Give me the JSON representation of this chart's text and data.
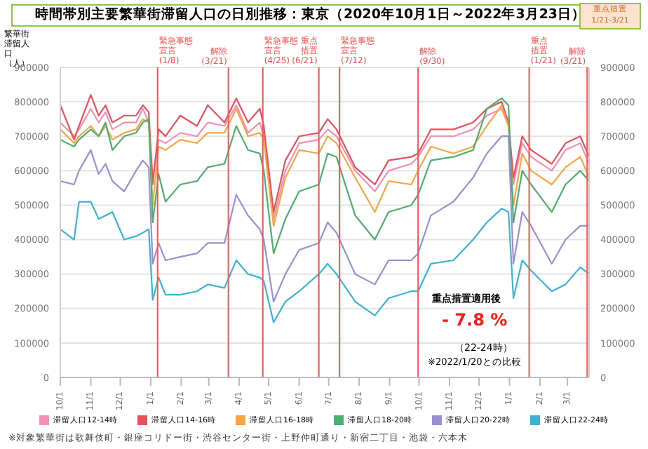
{
  "chart_data": {
    "type": "line",
    "title": "時間帯別主要繁華街滞留人口の日別推移：東京（2020年10月1日～2022年3月23日）",
    "ylabel": "繁華街滞留人口（人）",
    "x": [
      "2020-10-01",
      "2020-10-15",
      "2020-10-20",
      "2020-11-01",
      "2020-11-09",
      "2020-11-16",
      "2020-11-23",
      "2020-12-05",
      "2020-12-17",
      "2020-12-24",
      "2020-12-30",
      "2021-01-03",
      "2021-01-09",
      "2021-01-16",
      "2021-01-31",
      "2021-02-17",
      "2021-02-28",
      "2021-03-17",
      "2021-03-29",
      "2021-04-10",
      "2021-04-22",
      "2021-04-26",
      "2021-05-06",
      "2021-05-18",
      "2021-06-01",
      "2021-06-21",
      "2021-06-30",
      "2021-07-09",
      "2021-07-28",
      "2021-08-17",
      "2021-08-31",
      "2021-09-23",
      "2021-09-30",
      "2021-10-13",
      "2021-11-05",
      "2021-11-25",
      "2021-12-09",
      "2021-12-24",
      "2021-12-31",
      "2022-01-05",
      "2022-01-14",
      "2022-01-23",
      "2022-02-13",
      "2022-02-27",
      "2022-03-14",
      "2022-03-23"
    ],
    "series": [
      {
        "name": "滞留人口12-14時",
        "color": "#f490b4",
        "values": [
          740000,
          700000,
          720000,
          780000,
          740000,
          770000,
          720000,
          740000,
          740000,
          780000,
          740000,
          580000,
          690000,
          680000,
          710000,
          700000,
          740000,
          730000,
          790000,
          710000,
          740000,
          700000,
          460000,
          600000,
          680000,
          690000,
          720000,
          700000,
          600000,
          540000,
          600000,
          620000,
          640000,
          700000,
          700000,
          720000,
          760000,
          780000,
          730000,
          560000,
          680000,
          640000,
          600000,
          660000,
          680000,
          620000
        ]
      },
      {
        "name": "滞留人口14-16時",
        "color": "#e8505b",
        "values": [
          790000,
          690000,
          730000,
          820000,
          760000,
          790000,
          740000,
          760000,
          760000,
          790000,
          770000,
          560000,
          720000,
          700000,
          760000,
          730000,
          790000,
          740000,
          810000,
          740000,
          780000,
          730000,
          480000,
          630000,
          700000,
          710000,
          750000,
          720000,
          610000,
          560000,
          630000,
          640000,
          650000,
          720000,
          720000,
          740000,
          780000,
          800000,
          740000,
          580000,
          700000,
          660000,
          620000,
          680000,
          700000,
          640000
        ]
      },
      {
        "name": "滞留人口16-18時",
        "color": "#f7a541",
        "values": [
          720000,
          680000,
          700000,
          730000,
          700000,
          730000,
          690000,
          710000,
          720000,
          750000,
          740000,
          500000,
          670000,
          660000,
          690000,
          680000,
          710000,
          710000,
          780000,
          700000,
          710000,
          690000,
          440000,
          580000,
          660000,
          650000,
          700000,
          680000,
          580000,
          480000,
          570000,
          560000,
          600000,
          670000,
          650000,
          670000,
          730000,
          790000,
          730000,
          500000,
          650000,
          600000,
          560000,
          610000,
          640000,
          580000
        ]
      },
      {
        "name": "滞留人口18-20時",
        "color": "#4caf6e",
        "values": [
          690000,
          670000,
          690000,
          720000,
          700000,
          740000,
          660000,
          700000,
          710000,
          740000,
          750000,
          450000,
          590000,
          510000,
          560000,
          570000,
          610000,
          620000,
          730000,
          660000,
          650000,
          600000,
          360000,
          460000,
          540000,
          560000,
          650000,
          640000,
          470000,
          400000,
          480000,
          500000,
          530000,
          630000,
          640000,
          660000,
          780000,
          810000,
          790000,
          450000,
          600000,
          560000,
          480000,
          560000,
          600000,
          570000
        ]
      },
      {
        "name": "滞留人口20-22時",
        "color": "#9b8fd4",
        "values": [
          570000,
          560000,
          600000,
          660000,
          590000,
          620000,
          570000,
          540000,
          600000,
          630000,
          610000,
          330000,
          390000,
          340000,
          350000,
          360000,
          390000,
          390000,
          530000,
          470000,
          430000,
          400000,
          220000,
          300000,
          370000,
          390000,
          450000,
          420000,
          300000,
          270000,
          340000,
          340000,
          360000,
          470000,
          510000,
          580000,
          650000,
          700000,
          700000,
          330000,
          480000,
          440000,
          330000,
          400000,
          440000,
          440000
        ]
      },
      {
        "name": "滞留人口22-24時",
        "color": "#3bb3d3",
        "values": [
          430000,
          400000,
          510000,
          510000,
          460000,
          470000,
          480000,
          400000,
          410000,
          420000,
          430000,
          225000,
          290000,
          240000,
          240000,
          250000,
          270000,
          260000,
          340000,
          300000,
          290000,
          280000,
          160000,
          220000,
          250000,
          300000,
          330000,
          300000,
          220000,
          180000,
          230000,
          250000,
          250000,
          330000,
          340000,
          400000,
          450000,
          490000,
          480000,
          230000,
          340000,
          310000,
          250000,
          270000,
          320000,
          300000
        ]
      }
    ],
    "xlim": [
      "2020-10-01",
      "2022-03-23"
    ],
    "xticks": [
      {
        "value": "2020-10-01",
        "label": "10/1"
      },
      {
        "value": "2020-11-01",
        "label": "11/1"
      },
      {
        "value": "2020-12-01",
        "label": "12/1"
      },
      {
        "value": "2021-01-01",
        "label": "1/1"
      },
      {
        "value": "2021-02-01",
        "label": "2/1"
      },
      {
        "value": "2021-03-01",
        "label": "3/1"
      },
      {
        "value": "2021-04-01",
        "label": "4/1"
      },
      {
        "value": "2021-05-01",
        "label": "5/1"
      },
      {
        "value": "2021-06-01",
        "label": "6/1"
      },
      {
        "value": "2021-07-01",
        "label": "7/1"
      },
      {
        "value": "2021-08-01",
        "label": "8/1"
      },
      {
        "value": "2021-09-01",
        "label": "9/1"
      },
      {
        "value": "2021-10-01",
        "label": "10/1"
      },
      {
        "value": "2021-11-01",
        "label": "11/1"
      },
      {
        "value": "2021-12-01",
        "label": "12/1"
      },
      {
        "value": "2022-01-01",
        "label": "1/1"
      },
      {
        "value": "2022-02-01",
        "label": "2/1"
      },
      {
        "value": "2022-03-01",
        "label": "3/1"
      }
    ],
    "ylim": [
      0,
      900000
    ],
    "yticks": [
      0,
      100000,
      200000,
      300000,
      400000,
      500000,
      600000,
      700000,
      800000,
      900000
    ],
    "y2lim": [
      0,
      900000
    ],
    "y2ticks": [
      0,
      100000,
      200000,
      300000,
      400000,
      500000,
      600000,
      700000,
      800000,
      900000
    ],
    "grid": "y",
    "legend": "bottom",
    "marker": "none",
    "line_style": "solid",
    "ref_lines": [
      {
        "axis": "x",
        "value": "2021-01-08",
        "label": "緊急事態宣言(1/8)"
      },
      {
        "axis": "x",
        "value": "2021-03-21",
        "label": "解除(3/21)"
      },
      {
        "axis": "x",
        "value": "2021-04-25",
        "label": "緊急事態宣言(4/25)"
      },
      {
        "axis": "x",
        "value": "2021-06-21",
        "label": "重点措置(6/21)"
      },
      {
        "axis": "x",
        "value": "2021-07-12",
        "label": "緊急事態宣言(7/12)"
      },
      {
        "axis": "x",
        "value": "2021-09-30",
        "label": "解除(9/30)"
      },
      {
        "axis": "x",
        "value": "2022-01-21",
        "label": "重点措置(1/21)"
      },
      {
        "axis": "x",
        "value": "2022-03-21",
        "label": "解除(3/21)"
      }
    ],
    "annotations": [
      "重点措置 1/21-3/21",
      "重点措置適用後",
      "- 7.8 %",
      "（22-24時）",
      "※2022/1/20との比較",
      "※対象繁華街は歌舞伎町・銀座コリドー街・渋谷センター街・上野仲町通り・新宿二丁目・池袋・六本木"
    ]
  }
}
